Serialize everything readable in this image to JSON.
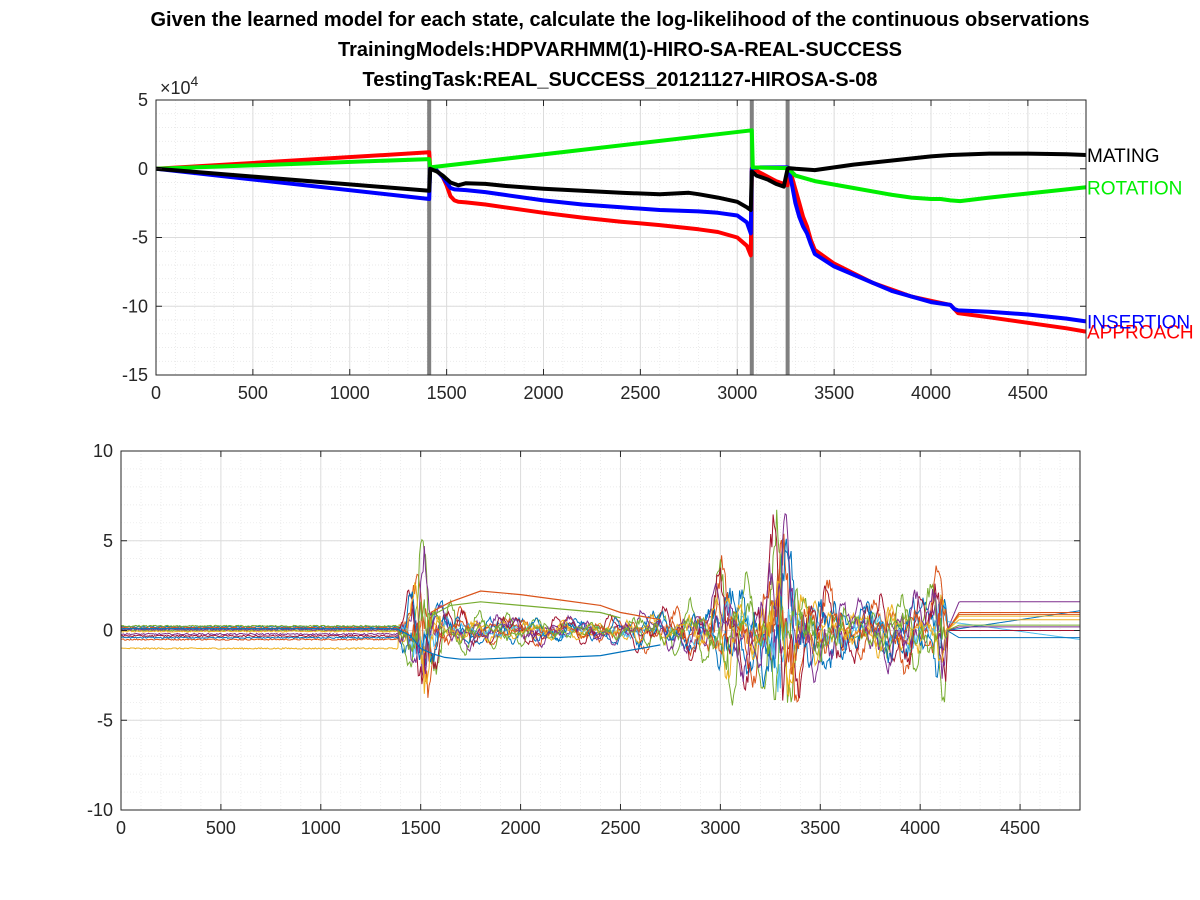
{
  "figure": {
    "title_lines": [
      "Given the learned model for each state, calculate the log-likelihood of the continuous observations",
      "TrainingModels:HDPVARHMM(1)-HIRO-SA-REAL-SUCCESS",
      "TestingTask:REAL_SUCCESS_20121127-HIROSA-S-08"
    ]
  },
  "chart_data": [
    {
      "type": "line",
      "title": "",
      "xlabel": "",
      "ylabel": "",
      "xlim": [
        0,
        4800
      ],
      "ylim": [
        -15,
        5
      ],
      "y_exponent_label": "×10",
      "y_exponent_value": "4",
      "xticks": [
        0,
        500,
        1000,
        1500,
        2000,
        2500,
        3000,
        3500,
        4000,
        4500
      ],
      "yticks": [
        -15,
        -10,
        -5,
        0,
        5
      ],
      "grid": true,
      "minor_grid": true,
      "vertical_markers": [
        1410,
        3075,
        3260
      ],
      "vertical_marker_color": "#808080",
      "series": [
        {
          "name": "APPROACH",
          "color": "#ff0000",
          "x": [
            0,
            1410,
            1415,
            1440,
            1460,
            1480,
            1500,
            1520,
            1540,
            1560,
            1600,
            1700,
            1800,
            2000,
            2200,
            2400,
            2600,
            2800,
            2900,
            3000,
            3050,
            3070,
            3075,
            3080,
            3120,
            3160,
            3200,
            3240,
            3260,
            3265,
            3280,
            3300,
            3320,
            3340,
            3360,
            3380,
            3400,
            3500,
            3600,
            3700,
            3800,
            3900,
            4000,
            4100,
            4120,
            4140,
            4300,
            4500,
            4700,
            4800
          ],
          "values": [
            0,
            1.2,
            0.1,
            0,
            -0.3,
            -0.6,
            -1.2,
            -2.0,
            -2.3,
            -2.4,
            -2.45,
            -2.6,
            -2.8,
            -3.2,
            -3.55,
            -3.85,
            -4.1,
            -4.4,
            -4.6,
            -5.0,
            -5.6,
            -6.3,
            0,
            0,
            -0.3,
            -0.6,
            -0.9,
            -1.1,
            -1.2,
            0,
            -0.5,
            -1.5,
            -2.5,
            -3.5,
            -4.2,
            -5.2,
            -5.9,
            -6.9,
            -7.6,
            -8.3,
            -8.8,
            -9.3,
            -9.6,
            -9.9,
            -10.2,
            -10.5,
            -10.8,
            -11.2,
            -11.6,
            -11.85
          ]
        },
        {
          "name": "INSERTION",
          "color": "#0000ff",
          "x": [
            0,
            1410,
            1415,
            1440,
            1460,
            1480,
            1500,
            1520,
            1540,
            1600,
            1700,
            1800,
            2000,
            2200,
            2400,
            2600,
            2800,
            2900,
            3000,
            3050,
            3070,
            3075,
            3080,
            3120,
            3160,
            3200,
            3240,
            3260,
            3265,
            3280,
            3300,
            3320,
            3340,
            3360,
            3380,
            3400,
            3500,
            3600,
            3700,
            3800,
            3900,
            4000,
            4100,
            4120,
            4140,
            4300,
            4500,
            4700,
            4800
          ],
          "values": [
            0,
            -2.2,
            0.1,
            0,
            -0.3,
            -0.6,
            -1.0,
            -1.4,
            -1.5,
            -1.55,
            -1.7,
            -1.9,
            -2.3,
            -2.6,
            -2.8,
            -3.0,
            -3.1,
            -3.2,
            -3.4,
            -3.9,
            -4.7,
            0,
            0.05,
            0.1,
            0.1,
            0.1,
            0.1,
            0.1,
            0,
            -1.0,
            -2.5,
            -3.5,
            -4.2,
            -4.7,
            -5.5,
            -6.2,
            -7.1,
            -7.7,
            -8.3,
            -8.9,
            -9.3,
            -9.7,
            -9.9,
            -10.2,
            -10.3,
            -10.4,
            -10.6,
            -10.9,
            -11.1
          ]
        },
        {
          "name": "ROTATION",
          "color": "#00ee00",
          "x": [
            0,
            1410,
            1415,
            3075,
            3080,
            3260,
            3265,
            3300,
            3400,
            3600,
            3800,
            3900,
            4000,
            4050,
            4100,
            4150,
            4300,
            4500,
            4700,
            4800
          ],
          "values": [
            0,
            0.7,
            0.1,
            2.8,
            0.1,
            0.05,
            0,
            -0.5,
            -0.9,
            -1.4,
            -1.9,
            -2.1,
            -2.2,
            -2.2,
            -2.3,
            -2.35,
            -2.1,
            -1.8,
            -1.5,
            -1.35
          ]
        },
        {
          "name": "MATING",
          "color": "#000000",
          "x": [
            0,
            1410,
            1415,
            1450,
            1480,
            1520,
            1560,
            1600,
            1700,
            1800,
            2000,
            2200,
            2400,
            2600,
            2750,
            2800,
            2900,
            3000,
            3050,
            3070,
            3075,
            3100,
            3160,
            3200,
            3240,
            3260,
            3265,
            3300,
            3400,
            3600,
            3800,
            4000,
            4100,
            4300,
            4500,
            4700,
            4800
          ],
          "values": [
            0,
            -1.6,
            0,
            -0.2,
            -0.5,
            -1.0,
            -1.2,
            -1.05,
            -1.1,
            -1.25,
            -1.45,
            -1.6,
            -1.75,
            -1.85,
            -1.75,
            -1.85,
            -2.1,
            -2.4,
            -2.8,
            -3.0,
            -0.2,
            -0.5,
            -0.8,
            -1.1,
            -1.3,
            0,
            0.05,
            0,
            -0.1,
            0.3,
            0.6,
            0.9,
            1.0,
            1.1,
            1.1,
            1.05,
            1.0
          ]
        }
      ]
    },
    {
      "type": "line",
      "title": "",
      "xlabel": "",
      "ylabel": "",
      "xlim": [
        0,
        4800
      ],
      "ylim": [
        -10,
        10
      ],
      "xticks": [
        0,
        500,
        1000,
        1500,
        2000,
        2500,
        3000,
        3500,
        4000,
        4500
      ],
      "yticks": [
        -10,
        -5,
        0,
        5,
        10
      ],
      "grid": true,
      "minor_grid": true,
      "series_colors": [
        "#0072bd",
        "#d95319",
        "#edb120",
        "#7e2f8e",
        "#77ac30",
        "#4dbeee",
        "#a2142f",
        "#0072bd",
        "#d95319",
        "#edb120",
        "#7e2f8e",
        "#77ac30"
      ],
      "series_baselines_before": [
        0.2,
        -0.5,
        -1.0,
        -0.2,
        0.0,
        0.1,
        -0.3,
        -0.4,
        0.15,
        -0.05,
        0.05,
        0.25
      ],
      "series_baselines_after": [
        1.0,
        1.0,
        0.8,
        1.6,
        0.0,
        0.5,
        0.0,
        -0.4,
        0.9,
        0.6,
        0.2,
        0.3
      ],
      "activity_envelope": {
        "x": [
          0,
          1380,
          1420,
          1480,
          1520,
          1560,
          1650,
          1800,
          2000,
          2200,
          2400,
          2600,
          2800,
          2950,
          3020,
          3100,
          3200,
          3260,
          3290,
          3330,
          3400,
          3500,
          3700,
          3900,
          4050,
          4110,
          4130,
          4140,
          4800
        ],
        "values": [
          0.05,
          0.2,
          2.0,
          4.0,
          6.5,
          2.5,
          1.5,
          1.0,
          1.0,
          0.9,
          0.8,
          1.2,
          1.5,
          2.0,
          4.5,
          3.0,
          3.5,
          6.0,
          8.8,
          7.0,
          3.5,
          3.0,
          2.0,
          2.5,
          2.5,
          5.0,
          3.0,
          0.1,
          0.05
        ]
      },
      "notable_traces": [
        {
          "color": "#0072bd",
          "x": [
            0,
            1380,
            1450,
            1500,
            1560,
            1620,
            1700,
            1800,
            2000,
            2200,
            2400,
            2500,
            2600,
            2700
          ],
          "values": [
            0.1,
            0.1,
            -0.3,
            -1.0,
            -1.3,
            -1.5,
            -1.6,
            -1.6,
            -1.5,
            -1.5,
            -1.4,
            -1.2,
            -1.0,
            -0.8
          ]
        },
        {
          "color": "#d95319",
          "x": [
            1550,
            1650,
            1800,
            2000,
            2200,
            2400,
            2500,
            2600,
            2700
          ],
          "values": [
            1.0,
            1.6,
            2.2,
            2.0,
            1.7,
            1.4,
            1.0,
            0.8,
            0.6
          ]
        },
        {
          "color": "#77ac30",
          "x": [
            1550,
            1650,
            1800,
            2000,
            2200,
            2400,
            2500
          ],
          "values": [
            0.8,
            1.4,
            1.6,
            1.4,
            1.2,
            1.0,
            0.7
          ]
        }
      ]
    }
  ]
}
